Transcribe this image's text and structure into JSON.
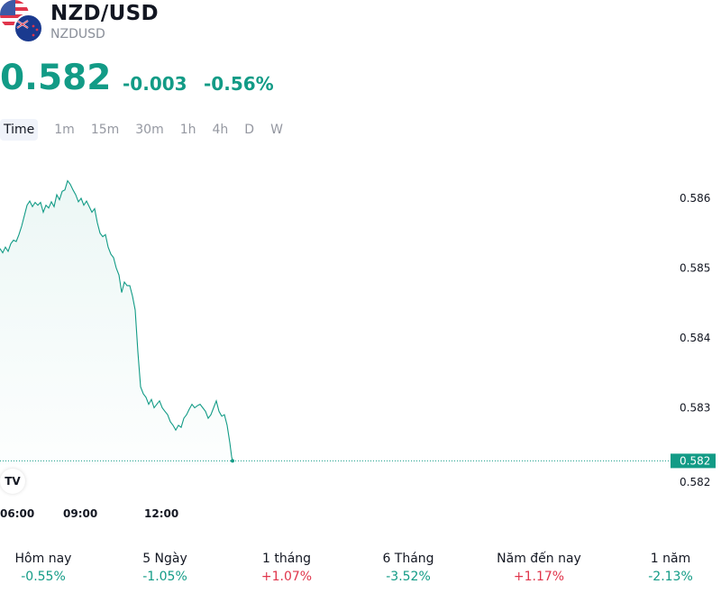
{
  "header": {
    "title": "NZD/USD",
    "symbol": "NZDUSD",
    "price": "0.582",
    "change": "-0.003",
    "change_pct": "-0.56%"
  },
  "tabs": [
    "Time",
    "1m",
    "15m",
    "30m",
    "1h",
    "4h",
    "D",
    "W"
  ],
  "colors": {
    "accent": "#129b86",
    "negative": "#e0354b"
  },
  "chart_data": {
    "type": "area",
    "x_ticks": [
      "06:00",
      "09:00",
      "12:00"
    ],
    "y_ticks": [
      0.586,
      0.585,
      0.584,
      0.583,
      0.582
    ],
    "ylim": [
      0.5818,
      0.5869
    ],
    "xlim_minutes": [
      0,
      550
    ],
    "last_price_label": "0.582",
    "series": [
      {
        "values": [
          [
            0,
            0.58528
          ],
          [
            3,
            0.58522
          ],
          [
            6,
            0.5853
          ],
          [
            9,
            0.58524
          ],
          [
            12,
            0.58535
          ],
          [
            15,
            0.5854
          ],
          [
            18,
            0.58538
          ],
          [
            21,
            0.58548
          ],
          [
            24,
            0.5856
          ],
          [
            27,
            0.58575
          ],
          [
            30,
            0.5859
          ],
          [
            33,
            0.58596
          ],
          [
            36,
            0.58588
          ],
          [
            39,
            0.58594
          ],
          [
            42,
            0.5859
          ],
          [
            45,
            0.58594
          ],
          [
            48,
            0.5858
          ],
          [
            51,
            0.5859
          ],
          [
            54,
            0.58586
          ],
          [
            57,
            0.58595
          ],
          [
            60,
            0.58588
          ],
          [
            63,
            0.58605
          ],
          [
            66,
            0.58598
          ],
          [
            69,
            0.5861
          ],
          [
            72,
            0.58612
          ],
          [
            75,
            0.58625
          ],
          [
            78,
            0.5862
          ],
          [
            81,
            0.58612
          ],
          [
            84,
            0.58605
          ],
          [
            87,
            0.58595
          ],
          [
            90,
            0.586
          ],
          [
            93,
            0.5859
          ],
          [
            96,
            0.58596
          ],
          [
            99,
            0.58588
          ],
          [
            102,
            0.5858
          ],
          [
            105,
            0.58585
          ],
          [
            108,
            0.58565
          ],
          [
            111,
            0.5855
          ],
          [
            114,
            0.58545
          ],
          [
            117,
            0.58548
          ],
          [
            120,
            0.5853
          ],
          [
            123,
            0.5852
          ],
          [
            126,
            0.58515
          ],
          [
            129,
            0.585
          ],
          [
            132,
            0.5849
          ],
          [
            135,
            0.58465
          ],
          [
            138,
            0.5848
          ],
          [
            141,
            0.58475
          ],
          [
            144,
            0.58475
          ],
          [
            147,
            0.5846
          ],
          [
            150,
            0.5844
          ],
          [
            153,
            0.5838
          ],
          [
            156,
            0.5833
          ],
          [
            159,
            0.5832
          ],
          [
            162,
            0.58315
          ],
          [
            165,
            0.58305
          ],
          [
            168,
            0.58312
          ],
          [
            171,
            0.583
          ],
          [
            174,
            0.58305
          ],
          [
            177,
            0.5831
          ],
          [
            180,
            0.583
          ],
          [
            183,
            0.58295
          ],
          [
            186,
            0.5829
          ],
          [
            189,
            0.5828
          ],
          [
            192,
            0.58275
          ],
          [
            195,
            0.58268
          ],
          [
            198,
            0.58275
          ],
          [
            201,
            0.58272
          ],
          [
            204,
            0.58285
          ],
          [
            207,
            0.5829
          ],
          [
            210,
            0.58298
          ],
          [
            213,
            0.58305
          ],
          [
            216,
            0.583
          ],
          [
            219,
            0.58303
          ],
          [
            222,
            0.58305
          ],
          [
            225,
            0.583
          ],
          [
            228,
            0.58295
          ],
          [
            231,
            0.58285
          ],
          [
            234,
            0.5829
          ],
          [
            237,
            0.583
          ],
          [
            240,
            0.5831
          ],
          [
            243,
            0.58295
          ],
          [
            246,
            0.58288
          ],
          [
            249,
            0.5829
          ],
          [
            252,
            0.58275
          ],
          [
            255,
            0.5825
          ],
          [
            257,
            0.5823
          ],
          [
            258,
            0.58224
          ]
        ]
      }
    ]
  },
  "performance": [
    {
      "label": "Hôm nay",
      "value": "-0.55%",
      "dir": "neg"
    },
    {
      "label": "5 Ngày",
      "value": "-1.05%",
      "dir": "neg"
    },
    {
      "label": "1 tháng",
      "value": "+1.07%",
      "dir": "pos"
    },
    {
      "label": "6 Tháng",
      "value": "-3.52%",
      "dir": "neg"
    },
    {
      "label": "Năm đến nay",
      "value": "+1.17%",
      "dir": "pos"
    },
    {
      "label": "1 năm",
      "value": "-2.13%",
      "dir": "neg"
    }
  ]
}
